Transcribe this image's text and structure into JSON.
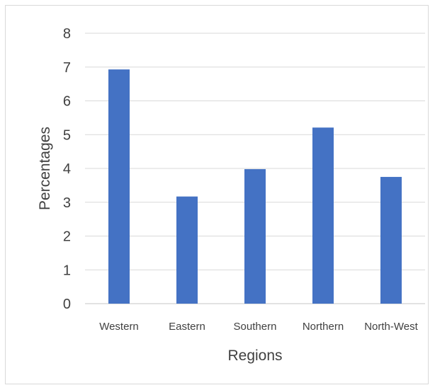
{
  "chart_data": {
    "type": "bar",
    "categories": [
      "Western",
      "Eastern",
      "Southern",
      "Northern",
      "North-West"
    ],
    "values": [
      6.93,
      3.17,
      3.98,
      5.21,
      3.75
    ],
    "xlabel": "Regions",
    "ylabel": "Percentages",
    "ylim": [
      0,
      8
    ],
    "yticks": [
      "0",
      "1",
      "2",
      "3",
      "4",
      "5",
      "6",
      "7",
      "8"
    ],
    "grid": true,
    "legend": "none",
    "bar_color": "#4472C4",
    "grid_color": "#d9d9d9"
  }
}
